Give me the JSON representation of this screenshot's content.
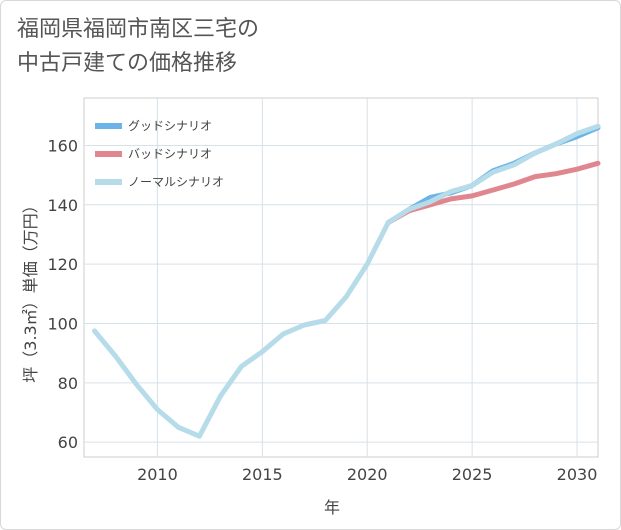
{
  "chart_data": {
    "type": "line",
    "title": "福岡県福岡市南区三宅の\n中古戸建ての価格推移",
    "xlabel": "年",
    "ylabel": "坪（3.3㎡）単価（万円）",
    "xlim": [
      2006.5,
      2031
    ],
    "ylim": [
      55,
      176
    ],
    "xticks": [
      2010,
      2015,
      2020,
      2025,
      2030
    ],
    "yticks": [
      60,
      80,
      100,
      120,
      140,
      160
    ],
    "legend_position": "top-left",
    "series": [
      {
        "name": "グッドシナリオ",
        "color": "#6cb4e8",
        "x": [
          2021,
          2022,
          2023,
          2024,
          2025,
          2026,
          2027,
          2028,
          2029,
          2030,
          2031
        ],
        "values": [
          134,
          138.5,
          142.5,
          144,
          146.5,
          151.5,
          154,
          157.5,
          160.5,
          163,
          166
        ]
      },
      {
        "name": "バッドシナリオ",
        "color": "#e0868f",
        "x": [
          2021,
          2022,
          2023,
          2024,
          2025,
          2026,
          2027,
          2028,
          2029,
          2030,
          2031
        ],
        "values": [
          134,
          138,
          140,
          142,
          143,
          145,
          147,
          149.5,
          150.5,
          152,
          154
        ]
      },
      {
        "name": "ノーマルシナリオ",
        "color": "#b6dcea",
        "x": [
          2007,
          2008,
          2009,
          2010,
          2011,
          2012,
          2013,
          2014,
          2015,
          2016,
          2017,
          2018,
          2019,
          2020,
          2021,
          2022,
          2023,
          2024,
          2025,
          2026,
          2027,
          2028,
          2029,
          2030,
          2031
        ],
        "values": [
          97.5,
          89,
          79.5,
          71,
          65,
          62,
          75.5,
          85.5,
          90.5,
          96.5,
          99.5,
          101,
          109,
          120,
          134,
          138.5,
          141,
          144.5,
          146.5,
          151,
          153.5,
          157.5,
          160.5,
          164,
          166.5
        ]
      }
    ]
  }
}
